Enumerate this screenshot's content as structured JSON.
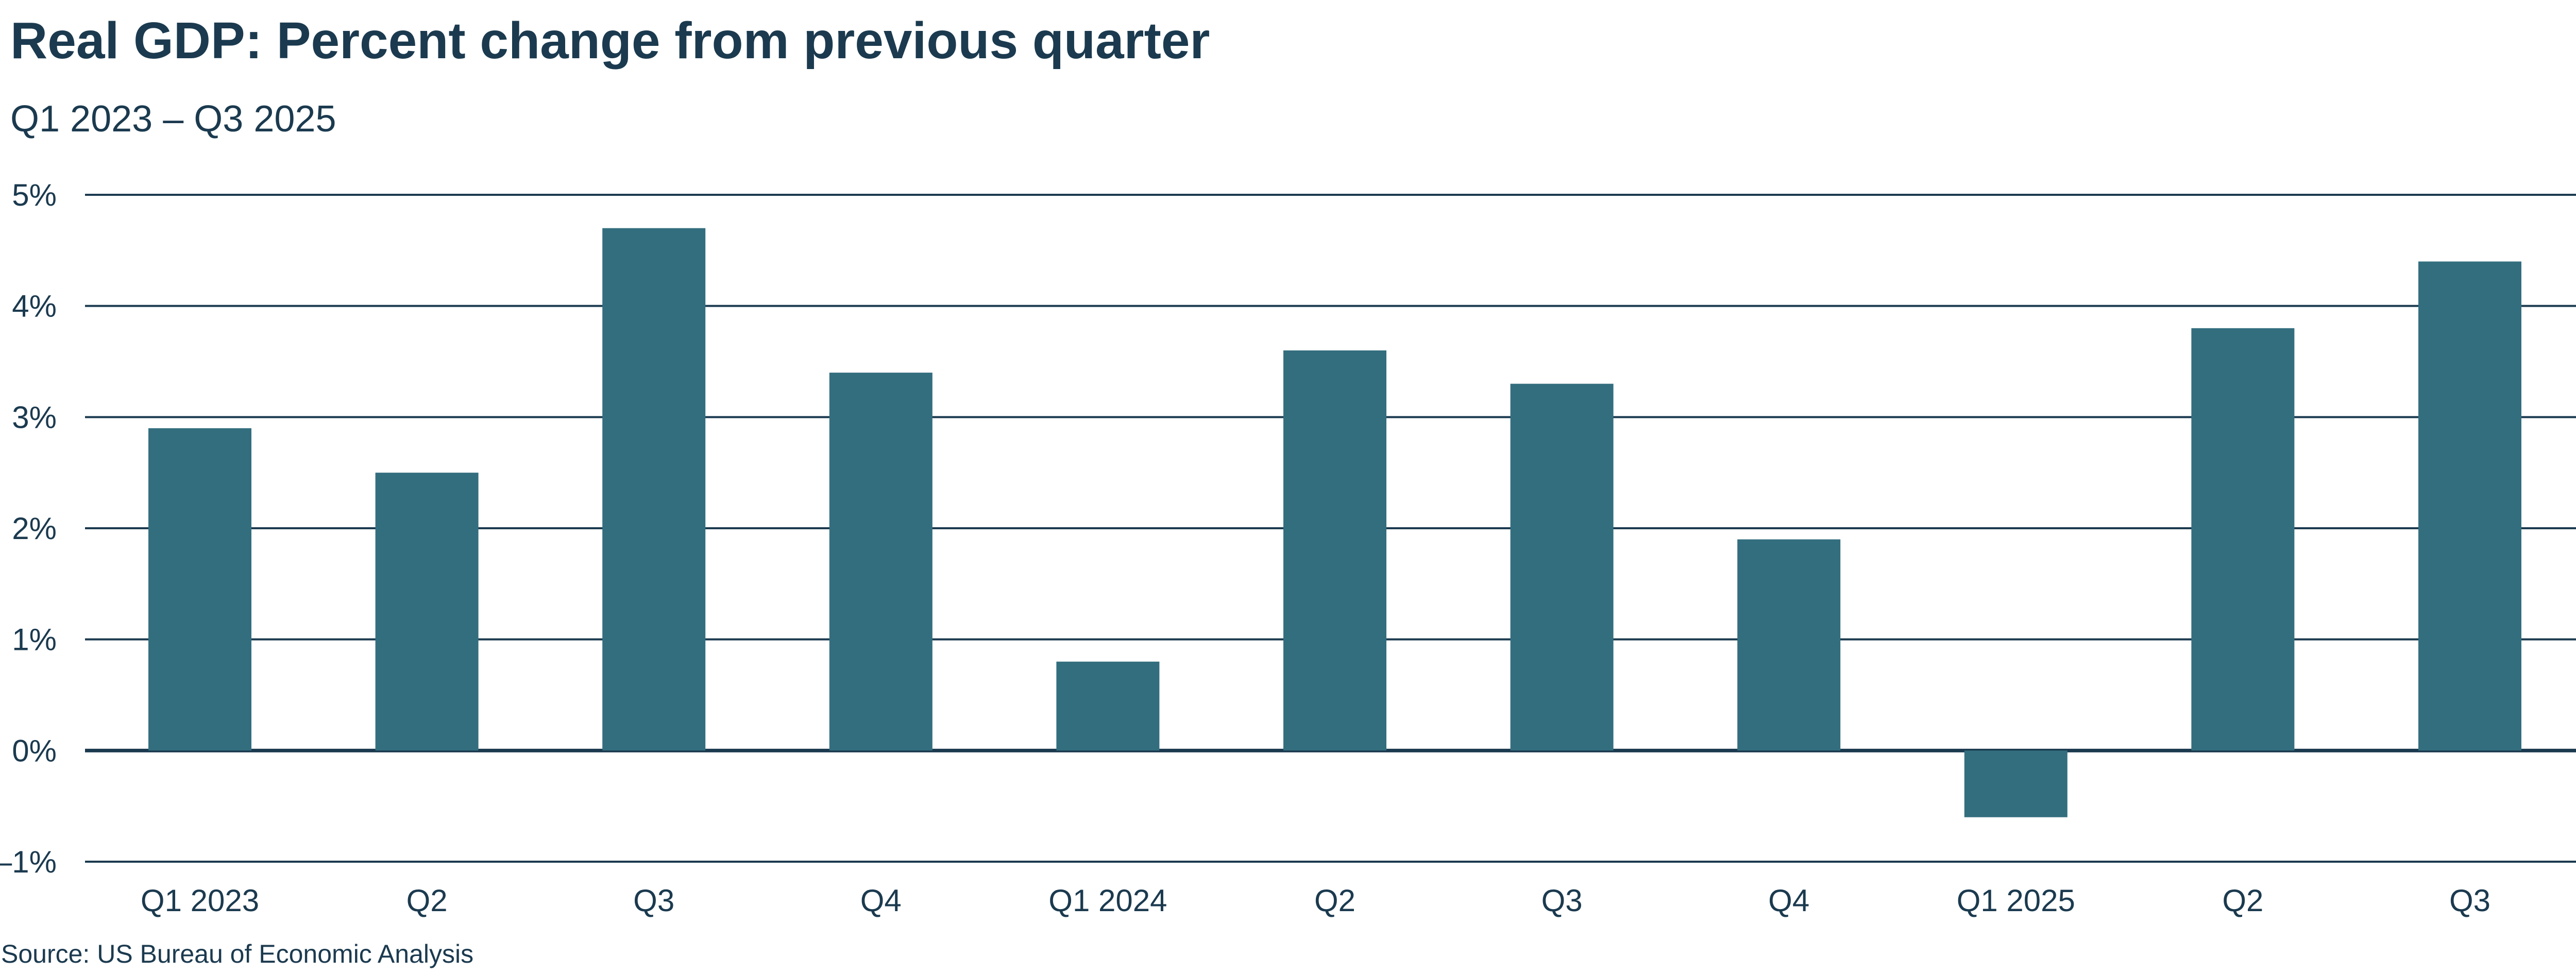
{
  "chart_data": {
    "type": "bar",
    "title": "Real GDP: Percent change from previous quarter",
    "subtitle": "Q1 2023 – Q3 2025",
    "source": "Source: US Bureau of Economic Analysis",
    "categories": [
      "Q1 2023",
      "Q2",
      "Q3",
      "Q4",
      "Q1 2024",
      "Q2",
      "Q3",
      "Q4",
      "Q1 2025",
      "Q2",
      "Q3"
    ],
    "values": [
      2.9,
      2.5,
      4.7,
      3.4,
      0.8,
      3.6,
      3.3,
      1.9,
      -0.6,
      3.8,
      4.4
    ],
    "ylim": [
      -1,
      5
    ],
    "yticks": [
      5,
      4,
      3,
      2,
      1,
      0,
      -1
    ],
    "ytick_labels": [
      "5%",
      "4%",
      "3%",
      "2%",
      "1%",
      "0%",
      "–1%"
    ],
    "xlabel": "",
    "ylabel": "",
    "grid": true,
    "bar_color": "#336e7e",
    "text_color": "#1b3a4f"
  }
}
